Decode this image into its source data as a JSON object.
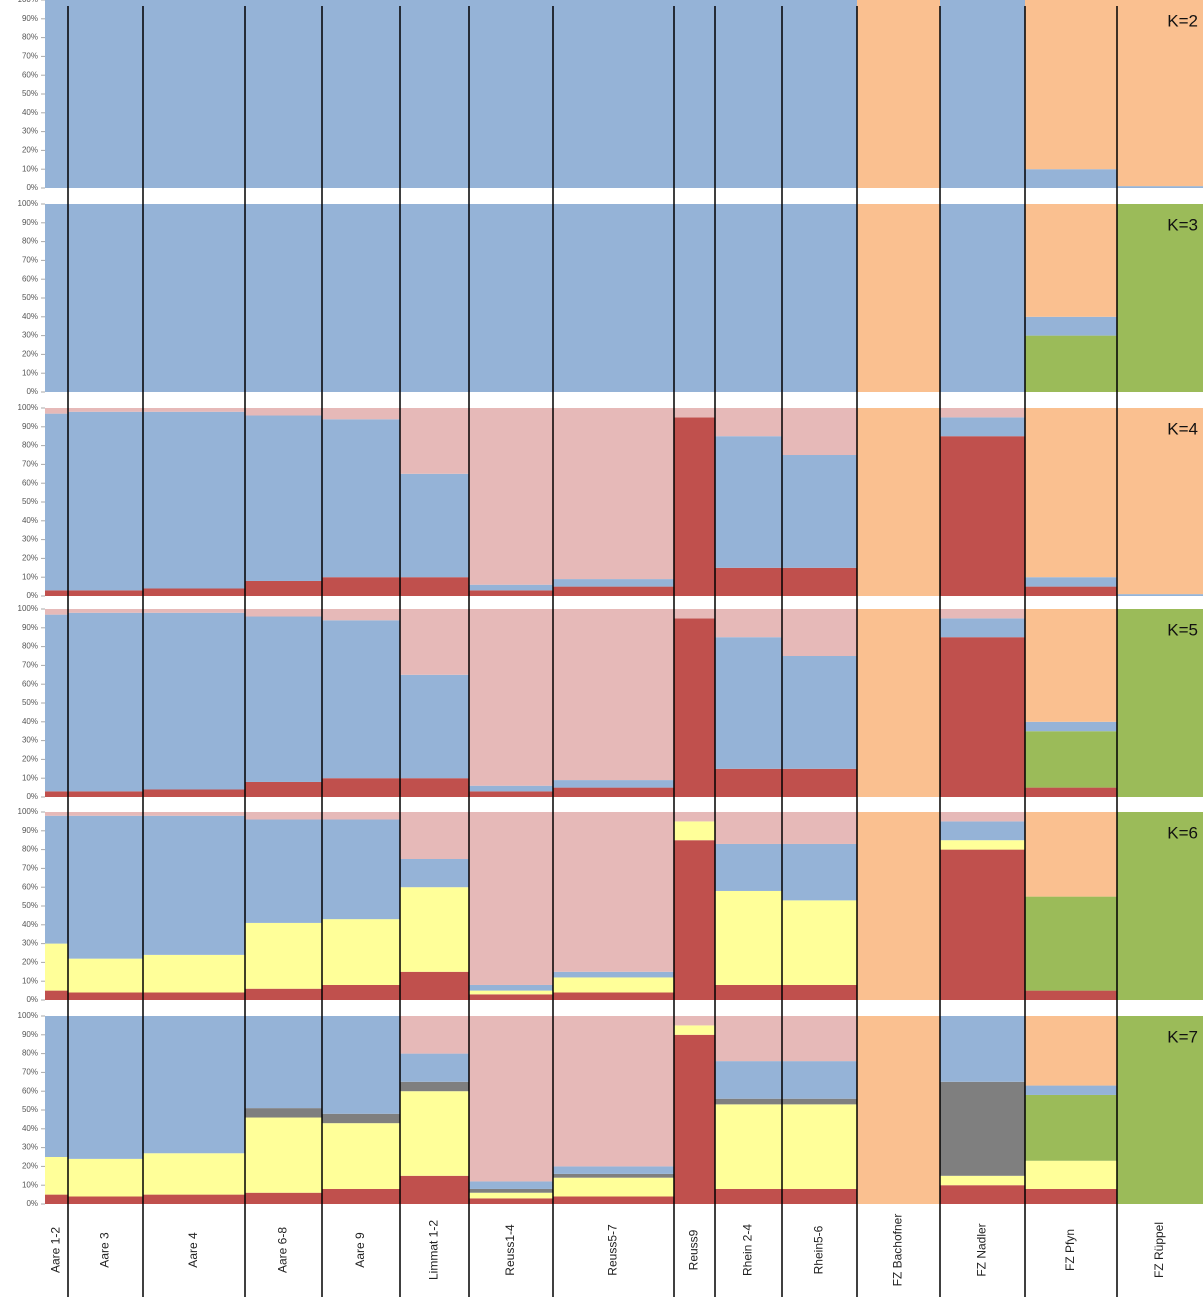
{
  "chart_data": {
    "type": "bar",
    "stacked": true,
    "categories": [
      "Aare 1-2",
      "Aare 3",
      "Aare 4",
      "Aare 6-8",
      "Aare 9",
      "Limmat 1-2",
      "Reuss1-4",
      "Reuss5-7",
      "Reuss9",
      "Rhein 2-4",
      "Rhein5-6",
      "FZ Bachofner",
      "FZ Nadler",
      "FZ Pfyn",
      "FZ Rüppel"
    ],
    "ylim": [
      0,
      100
    ],
    "yticks": [
      {
        "value": 0,
        "label": "0%"
      },
      {
        "value": 10,
        "label": "10%"
      },
      {
        "value": 20,
        "label": "20%"
      },
      {
        "value": 30,
        "label": "30%"
      },
      {
        "value": 40,
        "label": "40%"
      },
      {
        "value": 50,
        "label": "50%"
      },
      {
        "value": 60,
        "label": "60%"
      },
      {
        "value": 70,
        "label": "70%"
      },
      {
        "value": 80,
        "label": "80%"
      },
      {
        "value": 90,
        "label": "90%"
      },
      {
        "value": 100,
        "label": "100%"
      }
    ],
    "panels": [
      {
        "title": "K=2",
        "series": [
          {
            "color": "#95b3d7",
            "values": [
              100,
              100,
              100,
              100,
              100,
              100,
              100,
              100,
              100,
              100,
              100,
              0,
              100,
              10,
              1
            ]
          },
          {
            "color": "#fac090",
            "values": [
              0,
              0,
              0,
              0,
              0,
              0,
              0,
              0,
              0,
              0,
              0,
              100,
              0,
              90,
              99
            ]
          }
        ]
      },
      {
        "title": "K=3",
        "series": [
          {
            "color": "#9bbb59",
            "values": [
              0,
              0,
              0,
              0,
              0,
              0,
              0,
              0,
              0,
              0,
              0,
              0,
              0,
              30,
              100
            ]
          },
          {
            "color": "#95b3d7",
            "values": [
              100,
              100,
              100,
              100,
              100,
              100,
              100,
              100,
              100,
              100,
              100,
              0,
              100,
              10,
              0
            ]
          },
          {
            "color": "#fac090",
            "values": [
              0,
              0,
              0,
              0,
              0,
              0,
              0,
              0,
              0,
              0,
              0,
              100,
              0,
              60,
              0
            ]
          }
        ]
      },
      {
        "title": "K=4",
        "series": [
          {
            "color": "#c0504d",
            "values": [
              3,
              3,
              4,
              8,
              10,
              10,
              3,
              5,
              95,
              15,
              15,
              0,
              85,
              5,
              0
            ]
          },
          {
            "color": "#95b3d7",
            "values": [
              94,
              95,
              94,
              88,
              84,
              55,
              3,
              4,
              0,
              70,
              60,
              0,
              10,
              5,
              1
            ]
          },
          {
            "color": "#e6b9b8",
            "values": [
              3,
              2,
              2,
              4,
              6,
              35,
              94,
              91,
              5,
              15,
              25,
              0,
              5,
              0,
              0
            ]
          },
          {
            "color": "#fac090",
            "values": [
              0,
              0,
              0,
              0,
              0,
              0,
              0,
              0,
              0,
              0,
              0,
              100,
              0,
              90,
              99
            ]
          }
        ]
      },
      {
        "title": "K=5",
        "series": [
          {
            "color": "#c0504d",
            "values": [
              3,
              3,
              4,
              8,
              10,
              10,
              3,
              5,
              95,
              15,
              15,
              0,
              85,
              5,
              0
            ]
          },
          {
            "color": "#9bbb59",
            "values": [
              0,
              0,
              0,
              0,
              0,
              0,
              0,
              0,
              0,
              0,
              0,
              0,
              0,
              30,
              100
            ]
          },
          {
            "color": "#95b3d7",
            "values": [
              94,
              95,
              94,
              88,
              84,
              55,
              3,
              4,
              0,
              70,
              60,
              0,
              10,
              5,
              0
            ]
          },
          {
            "color": "#e6b9b8",
            "values": [
              3,
              2,
              2,
              4,
              6,
              35,
              94,
              91,
              5,
              15,
              25,
              0,
              5,
              0,
              0
            ]
          },
          {
            "color": "#fac090",
            "values": [
              0,
              0,
              0,
              0,
              0,
              0,
              0,
              0,
              0,
              0,
              0,
              100,
              0,
              60,
              0
            ]
          }
        ]
      },
      {
        "title": "K=6",
        "series": [
          {
            "color": "#c0504d",
            "values": [
              5,
              4,
              4,
              6,
              8,
              15,
              3,
              4,
              85,
              8,
              8,
              0,
              80,
              5,
              0
            ]
          },
          {
            "color": "#ffff99",
            "values": [
              25,
              18,
              20,
              35,
              35,
              45,
              2,
              8,
              10,
              50,
              45,
              0,
              5,
              0,
              0
            ]
          },
          {
            "color": "#9bbb59",
            "values": [
              0,
              0,
              0,
              0,
              0,
              0,
              0,
              0,
              0,
              0,
              0,
              0,
              0,
              50,
              100
            ]
          },
          {
            "color": "#95b3d7",
            "values": [
              68,
              76,
              74,
              55,
              53,
              15,
              3,
              3,
              0,
              25,
              30,
              0,
              10,
              0,
              0
            ]
          },
          {
            "color": "#e6b9b8",
            "values": [
              2,
              2,
              2,
              4,
              4,
              25,
              92,
              85,
              5,
              17,
              17,
              0,
              5,
              0,
              0
            ]
          },
          {
            "color": "#fac090",
            "values": [
              0,
              0,
              0,
              0,
              0,
              0,
              0,
              0,
              0,
              0,
              0,
              100,
              0,
              45,
              0
            ]
          }
        ]
      },
      {
        "title": "K=7",
        "series": [
          {
            "color": "#c0504d",
            "values": [
              5,
              4,
              5,
              6,
              8,
              15,
              3,
              4,
              90,
              8,
              8,
              0,
              10,
              8,
              0
            ]
          },
          {
            "color": "#ffff99",
            "values": [
              20,
              20,
              22,
              40,
              35,
              45,
              3,
              10,
              5,
              45,
              45,
              0,
              5,
              15,
              0
            ]
          },
          {
            "color": "#7f7f7f",
            "values": [
              0,
              0,
              0,
              5,
              5,
              5,
              2,
              2,
              0,
              3,
              3,
              0,
              50,
              0,
              0
            ]
          },
          {
            "color": "#9bbb59",
            "values": [
              0,
              0,
              0,
              0,
              0,
              0,
              0,
              0,
              0,
              0,
              0,
              0,
              0,
              35,
              100
            ]
          },
          {
            "color": "#95b3d7",
            "values": [
              75,
              76,
              73,
              49,
              52,
              15,
              4,
              4,
              0,
              20,
              20,
              0,
              35,
              5,
              0
            ]
          },
          {
            "color": "#e6b9b8",
            "values": [
              0,
              0,
              0,
              0,
              0,
              20,
              88,
              80,
              5,
              24,
              24,
              0,
              0,
              0,
              0
            ]
          },
          {
            "color": "#fac090",
            "values": [
              0,
              0,
              0,
              0,
              0,
              0,
              0,
              0,
              0,
              0,
              0,
              100,
              0,
              37,
              0
            ]
          }
        ]
      }
    ]
  }
}
